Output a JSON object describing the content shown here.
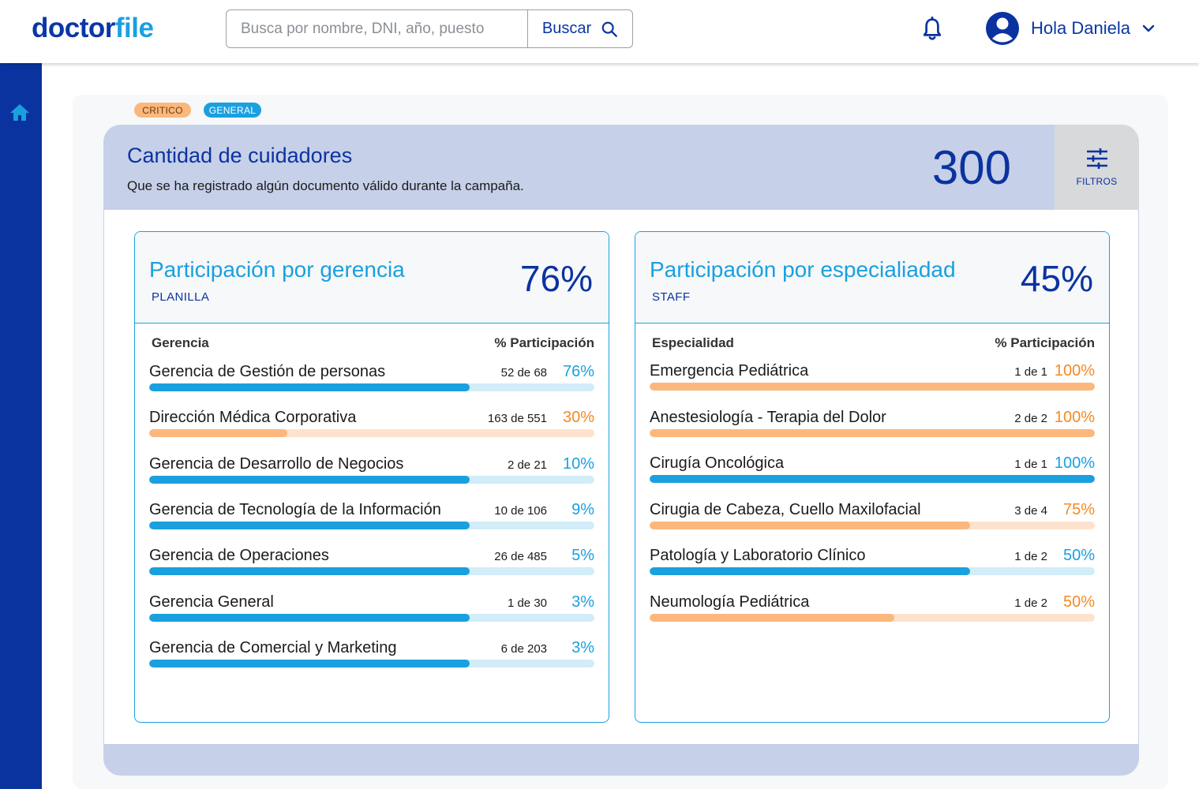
{
  "header": {
    "logo_main": "doctor",
    "logo_accent": "file",
    "search_placeholder": "Busca por nombre, DNI, año, puesto",
    "search_button": "Buscar",
    "user_greeting": "Hola Daniela"
  },
  "tags": {
    "critico": "CRITICO",
    "general": "GENERAL"
  },
  "card": {
    "title": "Cantidad de cuidadores",
    "subtitle": "Que se ha registrado algún documento válido durante la campaña.",
    "total": "300",
    "filters_label": "FILTROS"
  },
  "gerencia": {
    "title": "Participación por gerencia",
    "subtitle": "PLANILLA",
    "percent": "76%",
    "col_left": "Gerencia",
    "col_right": "% Participación",
    "rows": [
      {
        "label": "Gerencia de Gestión de personas",
        "count": "52 de 68",
        "percent": "76%",
        "fill": 0.72,
        "color": "blue"
      },
      {
        "label": "Dirección Médica Corporativa",
        "count": "163 de 551",
        "percent": "30%",
        "fill": 0.31,
        "color": "orange"
      },
      {
        "label": "Gerencia de Desarrollo de Negocios",
        "count": "2 de 21",
        "percent": "10%",
        "fill": 0.72,
        "color": "blue"
      },
      {
        "label": "Gerencia de Tecnología de la Información",
        "count": "10 de 106",
        "percent": "9%",
        "fill": 0.72,
        "color": "blue"
      },
      {
        "label": "Gerencia de Operaciones",
        "count": "26 de 485",
        "percent": "5%",
        "fill": 0.72,
        "color": "blue"
      },
      {
        "label": "Gerencia General",
        "count": "1 de 30",
        "percent": "3%",
        "fill": 0.72,
        "color": "blue"
      },
      {
        "label": "Gerencia de Comercial y Marketing",
        "count": "6 de 203",
        "percent": "3%",
        "fill": 0.72,
        "color": "blue"
      }
    ]
  },
  "especialidad": {
    "title": "Participación por especialiadad",
    "subtitle": "STAFF",
    "percent": "45%",
    "col_left": "Especialidad",
    "col_right": "% Participación",
    "rows": [
      {
        "label": "Emergencia Pediátrica",
        "count": "1 de 1",
        "percent": "100%",
        "fill": 1.0,
        "color": "orange"
      },
      {
        "label": "Anestesiología - Terapia del Dolor",
        "count": "2 de 2",
        "percent": "100%",
        "fill": 1.0,
        "color": "orange"
      },
      {
        "label": "Cirugía Oncológica",
        "count": "1 de 1",
        "percent": "100%",
        "fill": 1.0,
        "color": "blue"
      },
      {
        "label": "Cirugia de Cabeza, Cuello Maxilofacial",
        "count": "3 de 4",
        "percent": "75%",
        "fill": 0.72,
        "color": "orange"
      },
      {
        "label": "Patología y Laboratorio Clínico",
        "count": "1 de 2",
        "percent": "50%",
        "fill": 0.72,
        "color": "blue"
      },
      {
        "label": "Neumología Pediátrica",
        "count": "1 de 2",
        "percent": "50%",
        "fill": 0.55,
        "color": "orange"
      }
    ]
  },
  "colors": {
    "primary": "#0b33a0",
    "accent": "#1aa0df",
    "orange": "#f48a22",
    "orange_light": "#fcb77d"
  }
}
